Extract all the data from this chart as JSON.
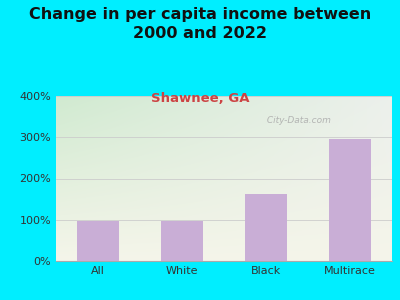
{
  "title": "Change in per capita income between\n2000 and 2022",
  "subtitle": "Shawnee, GA",
  "categories": [
    "All",
    "White",
    "Black",
    "Multirace"
  ],
  "values": [
    97,
    97,
    162,
    296
  ],
  "bar_color": "#c9aed6",
  "title_fontsize": 11.5,
  "subtitle_fontsize": 9.5,
  "subtitle_color": "#cc4444",
  "background_outer": "#00eeff",
  "background_inner_topleft": "#d4edda",
  "background_inner_topright": "#e8f0e8",
  "background_inner_bottom": "#f0f4e8",
  "ylim": [
    0,
    400
  ],
  "yticks": [
    0,
    100,
    200,
    300,
    400
  ],
  "watermark": " City-Data.com",
  "tick_fontsize": 8,
  "grid_color": "#cccccc"
}
